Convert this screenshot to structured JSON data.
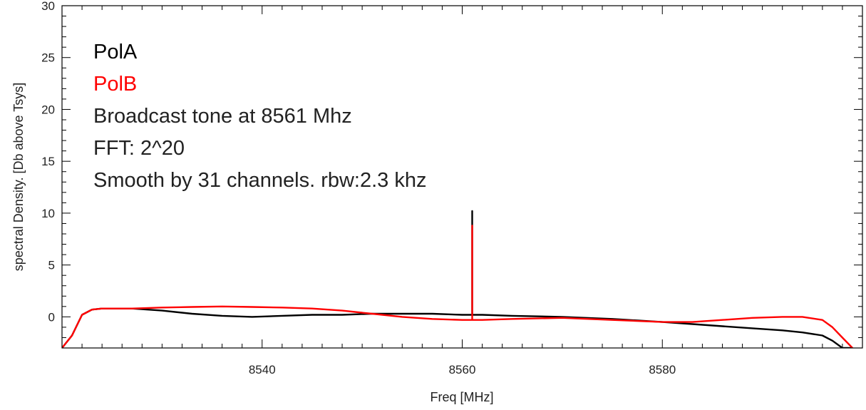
{
  "chart_data": {
    "type": "line",
    "xlabel": "Freq [MHz]",
    "ylabel": "spectral Density. [Db above Tsys]",
    "xlim": [
      8520,
      8600
    ],
    "ylim": [
      -3,
      30
    ],
    "xticks": [
      8540,
      8560,
      8580
    ],
    "yticks": [
      0,
      5,
      10,
      15,
      20,
      25,
      30
    ],
    "grid": false,
    "annotations": [
      {
        "text": "PolA",
        "color": "#000000"
      },
      {
        "text": "PolB",
        "color": "#ff0000"
      },
      {
        "text": "Broadcast tone at 8561 Mhz",
        "color": "#222222"
      },
      {
        "text": "FFT: 2^20",
        "color": "#222222"
      },
      {
        "text": "Smooth by 31 channels. rbw:2.3 khz",
        "color": "#222222"
      }
    ],
    "series": [
      {
        "name": "PolA",
        "color": "#000000",
        "x": [
          8520,
          8521,
          8522,
          8523,
          8524,
          8525,
          8527,
          8530,
          8533,
          8536,
          8539,
          8542,
          8545,
          8548,
          8551,
          8554,
          8557,
          8560,
          8561,
          8561,
          8561,
          8562,
          8565,
          8570,
          8575,
          8580,
          8583,
          8586,
          8589,
          8592,
          8594,
          8596,
          8597,
          8598,
          8599
        ],
        "y": [
          -3,
          -1.8,
          0.2,
          0.7,
          0.8,
          0.8,
          0.8,
          0.6,
          0.3,
          0.1,
          0.0,
          0.1,
          0.2,
          0.2,
          0.3,
          0.3,
          0.3,
          0.2,
          0.2,
          10.2,
          0.2,
          0.2,
          0.1,
          0.0,
          -0.2,
          -0.5,
          -0.7,
          -0.9,
          -1.1,
          -1.3,
          -1.5,
          -1.8,
          -2.3,
          -3.0,
          -3.0
        ]
      },
      {
        "name": "PolB",
        "color": "#ff0000",
        "x": [
          8520,
          8521,
          8522,
          8523,
          8524,
          8525,
          8527,
          8530,
          8533,
          8536,
          8539,
          8542,
          8545,
          8548,
          8551,
          8554,
          8557,
          8560,
          8561,
          8561,
          8561,
          8562,
          8565,
          8570,
          8575,
          8580,
          8583,
          8586,
          8589,
          8592,
          8594,
          8596,
          8597,
          8598,
          8599
        ],
        "y": [
          -3,
          -1.8,
          0.2,
          0.7,
          0.8,
          0.8,
          0.8,
          0.9,
          0.95,
          1.0,
          0.95,
          0.9,
          0.8,
          0.6,
          0.3,
          0.0,
          -0.2,
          -0.3,
          -0.3,
          8.8,
          -0.3,
          -0.3,
          -0.2,
          -0.1,
          -0.3,
          -0.5,
          -0.5,
          -0.3,
          -0.1,
          0.0,
          0.0,
          -0.3,
          -1.0,
          -2.0,
          -3.0
        ]
      }
    ]
  }
}
